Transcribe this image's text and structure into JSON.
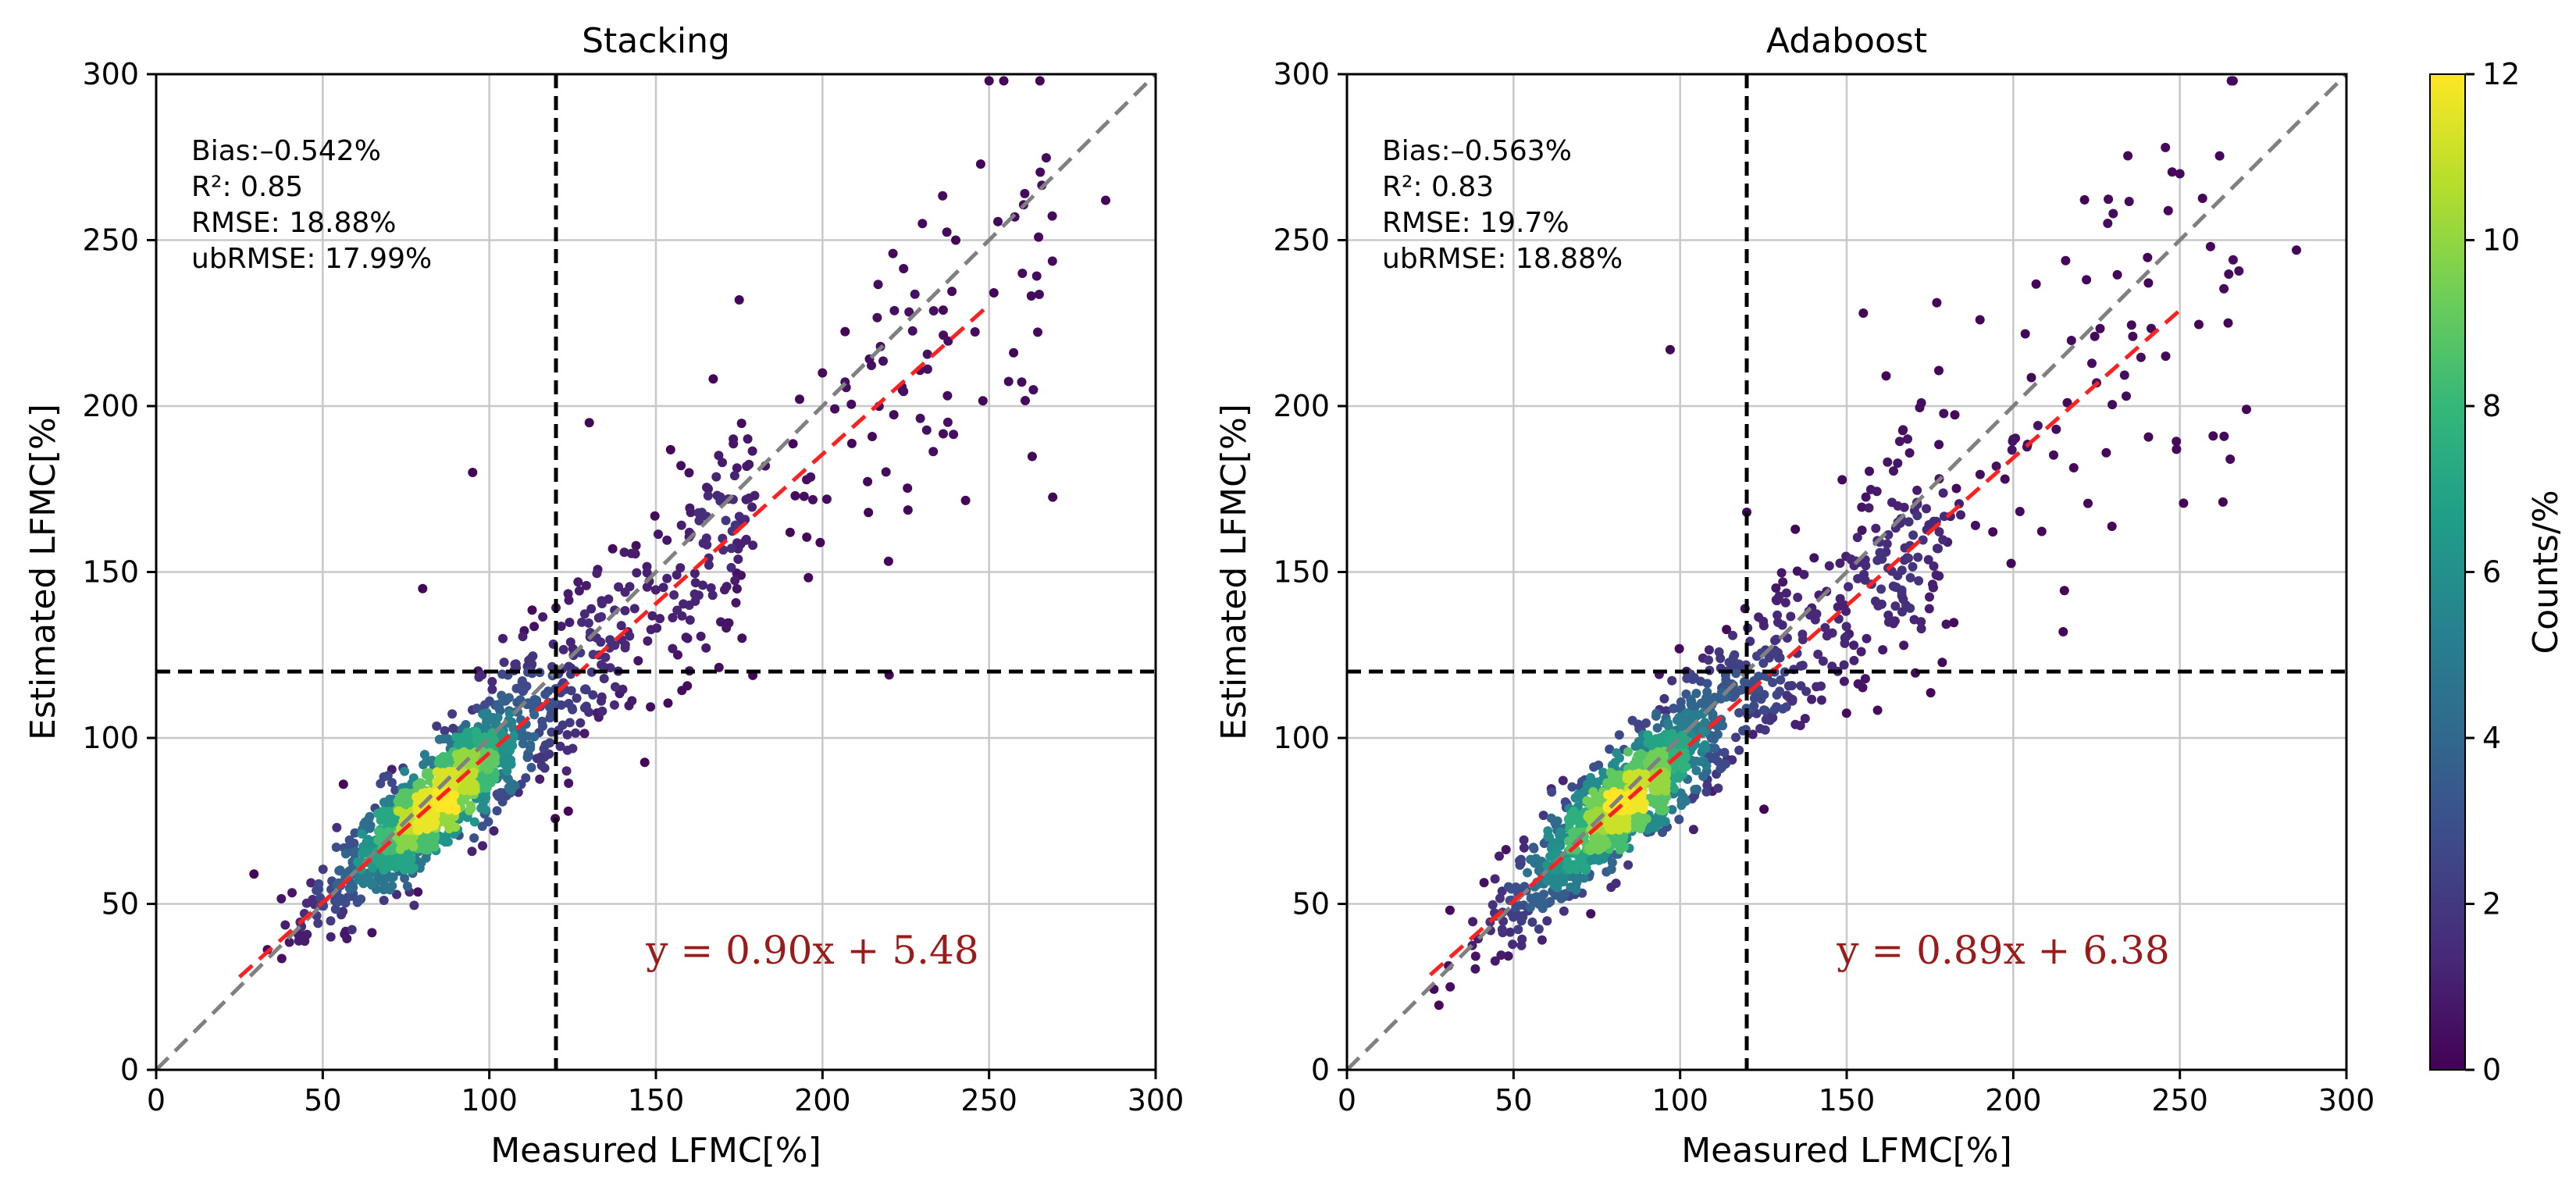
{
  "chart_data": [
    {
      "type": "scatter",
      "title": "Stacking",
      "xlabel": "Measured LFMC[%]",
      "ylabel": "Estimated LFMC[%]",
      "xlim": [
        0,
        300
      ],
      "ylim": [
        0,
        300
      ],
      "xticks": [
        "0",
        "50",
        "100",
        "150",
        "200",
        "250",
        "300"
      ],
      "yticks": [
        "0",
        "50",
        "100",
        "150",
        "200",
        "250",
        "300"
      ],
      "grid": true,
      "stats": [
        "Bias:–0.542%",
        "R²: 0.85",
        "RMSE: 18.88%",
        "ubRMSE: 17.99%"
      ],
      "equation": "y = 0.90x + 5.48",
      "fit": {
        "slope": 0.9,
        "intercept": 5.48,
        "x_range": [
          25,
          250
        ]
      },
      "one_to_one_line": true,
      "threshold_x": 120,
      "threshold_y": 120,
      "density_points": {
        "approx_count": 1400,
        "center_cluster": [
          85,
          82
        ],
        "seed": 11
      },
      "outlier_points": [
        [
          95,
          180
        ],
        [
          230,
          255
        ],
        [
          240,
          250
        ],
        [
          260,
          240
        ],
        [
          285,
          262
        ],
        [
          250,
          298
        ],
        [
          130,
          195
        ],
        [
          175,
          232
        ],
        [
          220,
          119
        ],
        [
          80,
          145
        ],
        [
          200,
          210
        ],
        [
          160,
          140
        ]
      ]
    },
    {
      "type": "scatter",
      "title": "Adaboost",
      "xlabel": "Measured LFMC[%]",
      "ylabel": "Estimated LFMC[%]",
      "xlim": [
        0,
        300
      ],
      "ylim": [
        0,
        300
      ],
      "xticks": [
        "0",
        "50",
        "100",
        "150",
        "200",
        "250",
        "300"
      ],
      "yticks": [
        "0",
        "50",
        "100",
        "150",
        "200",
        "250",
        "300"
      ],
      "grid": true,
      "stats": [
        "Bias:–0.563%",
        "R²: 0.83",
        "RMSE: 19.7%",
        "ubRMSE: 18.88%"
      ],
      "equation": "y = 0.89x + 6.38",
      "fit": {
        "slope": 0.89,
        "intercept": 6.38,
        "x_range": [
          25,
          250
        ]
      },
      "one_to_one_line": true,
      "threshold_x": 120,
      "threshold_y": 120,
      "density_points": {
        "approx_count": 1400,
        "center_cluster": [
          85,
          82
        ],
        "seed": 29
      },
      "outlier_points": [
        [
          97,
          217
        ],
        [
          250,
          270
        ],
        [
          230,
          258
        ],
        [
          285,
          247
        ],
        [
          270,
          199
        ],
        [
          225,
          207
        ],
        [
          155,
          228
        ],
        [
          190,
          226
        ],
        [
          215,
          132
        ],
        [
          200,
          190
        ],
        [
          120,
          168
        ],
        [
          260,
          191
        ]
      ]
    }
  ],
  "colorbar": {
    "label": "Counts/%",
    "range": [
      0,
      12
    ],
    "ticks": [
      "0",
      "2",
      "4",
      "6",
      "8",
      "10",
      "12"
    ],
    "colormap": [
      "#440154",
      "#482878",
      "#3e4989",
      "#31688e",
      "#26828e",
      "#1f9e89",
      "#35b779",
      "#6ece58",
      "#b5de2b",
      "#fde725"
    ]
  },
  "colors": {
    "fit_line": "#ff2020",
    "identity_line": "#808080",
    "threshold_line": "#000000",
    "equation_text": "#9b1b1b",
    "grid": "#c8c8c8"
  }
}
